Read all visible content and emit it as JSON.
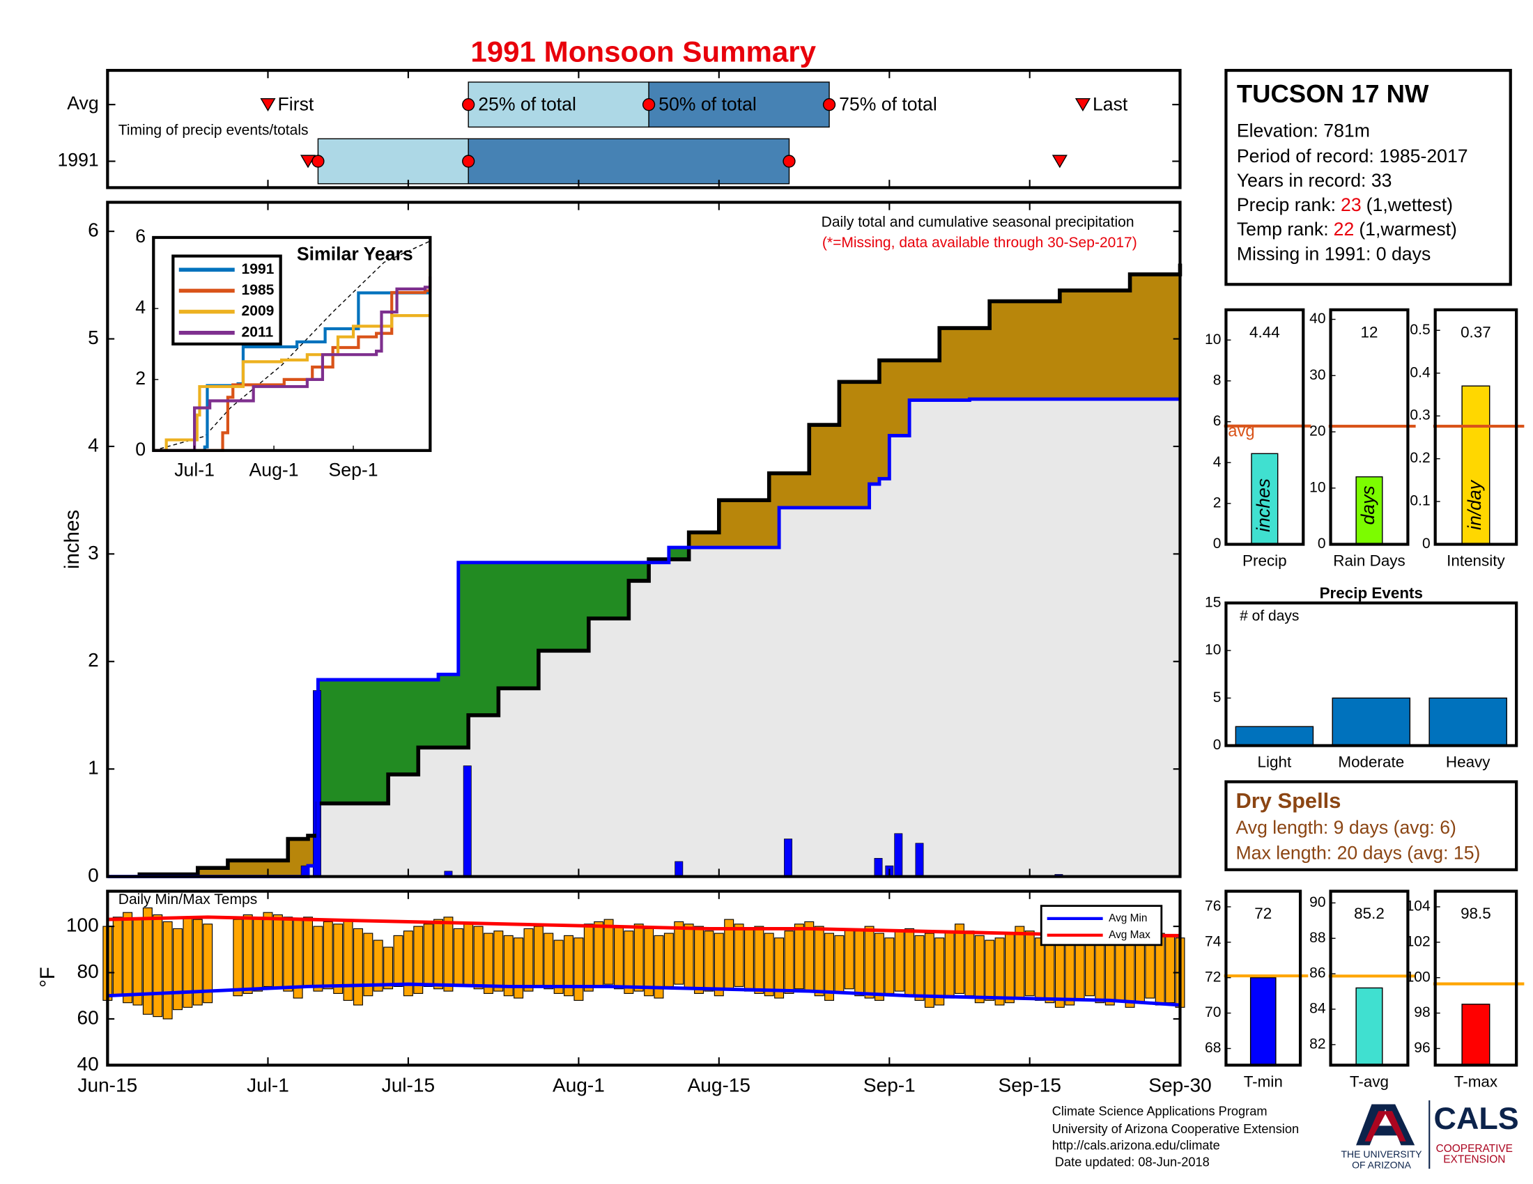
{
  "chart_data": [
    {
      "type": "area",
      "title": "1991 Monsoon Summary",
      "ylabel": "inches",
      "annotation": "Daily total and cumulative seasonal precipitation",
      "note": "(*=Missing, data available through 30-Sep-2017)",
      "xlim": [
        0,
        107
      ],
      "ylim": [
        0,
        6.27
      ],
      "yticks": [
        0,
        1,
        2,
        3,
        4,
        5,
        6
      ],
      "avg": {
        "color": "#000000",
        "x": [
          3,
          9,
          12,
          18,
          20,
          21,
          28,
          31,
          36,
          39,
          43,
          48,
          52,
          54,
          58,
          61,
          66,
          70,
          73,
          77,
          83,
          88,
          95,
          102,
          107
        ],
        "values": [
          0.02,
          0.08,
          0.15,
          0.35,
          0.38,
          0.68,
          0.95,
          1.2,
          1.5,
          1.75,
          2.1,
          2.4,
          2.75,
          2.95,
          3.2,
          3.5,
          3.75,
          4.2,
          4.6,
          4.8,
          5.1,
          5.35,
          5.45,
          5.6,
          5.7
        ]
      },
      "year": {
        "color": "#0000ff",
        "x": [
          0,
          20,
          21,
          33,
          35,
          56,
          67,
          76,
          77,
          78,
          80,
          86,
          107
        ],
        "values": [
          0,
          0.1,
          1.83,
          1.88,
          2.92,
          3.06,
          3.43,
          3.65,
          3.7,
          4.1,
          4.43,
          4.44,
          4.44
        ]
      },
      "daily": {
        "color": "#0000ff",
        "x": [
          19.7,
          20.9,
          34,
          35.9,
          57,
          67.9,
          76.9,
          78,
          78.9,
          81,
          94.9
        ],
        "values": [
          0.1,
          1.73,
          0.05,
          1.03,
          0.14,
          0.35,
          0.17,
          0.1,
          0.4,
          0.31,
          0.02
        ]
      },
      "dry_fill": "#b8860b",
      "wet_fill": "#228b22",
      "fill": "#e8e8e8"
    },
    {
      "type": "line",
      "title": "Similar Years",
      "xlim": [
        0,
        108
      ],
      "ylim": [
        0,
        6
      ],
      "yticks": [
        0,
        2,
        4,
        6
      ],
      "xticks": [
        {
          "value": 16,
          "label": "Jul-1"
        },
        {
          "value": 47,
          "label": "Aug-1"
        },
        {
          "value": 78,
          "label": "Sep-1"
        }
      ],
      "series": [
        {
          "name": "1991",
          "color": "#0072bd",
          "x": [
            0,
            20,
            21,
            33,
            35,
            56,
            67,
            80,
            108
          ],
          "values": [
            0,
            0.1,
            1.83,
            1.88,
            2.92,
            3.06,
            3.43,
            4.44,
            4.44
          ]
        },
        {
          "name": "1985",
          "color": "#d95319",
          "x": [
            0,
            27,
            29,
            31,
            51,
            62,
            70,
            80,
            87,
            93,
            106,
            108
          ],
          "values": [
            0,
            0.5,
            1.5,
            1.85,
            2.0,
            2.35,
            2.9,
            3.2,
            3.3,
            4.45,
            4.5,
            4.9
          ]
        },
        {
          "name": "2009",
          "color": "#edb120",
          "x": [
            0,
            5,
            17,
            18,
            35,
            50,
            60,
            72,
            78,
            93,
            108
          ],
          "values": [
            0,
            0.3,
            1.0,
            1.8,
            2.5,
            2.55,
            2.7,
            3.2,
            3.5,
            3.8,
            3.8
          ]
        },
        {
          "name": "2011",
          "color": "#7e2f8e",
          "x": [
            0,
            14.5,
            16,
            22,
            39,
            60,
            66,
            87,
            89,
            95,
            106,
            108
          ],
          "values": [
            0,
            0,
            1.2,
            1.4,
            1.8,
            2.0,
            2.7,
            2.8,
            3.9,
            4.55,
            4.6,
            4.9
          ]
        }
      ],
      "avg": {
        "color": "#000000",
        "x": [
          0,
          20,
          30,
          50,
          70,
          90,
          108
        ],
        "values": [
          0,
          0.4,
          1.2,
          2.4,
          3.9,
          5.3,
          5.9
        ]
      }
    },
    {
      "type": "timeline",
      "annotation": "Timing of precip events/totals",
      "xlim": [
        0,
        107
      ],
      "labels": {
        "first": "First",
        "q25": "25% of total",
        "q50": "50% of total",
        "q75": "75% of total",
        "last": "Last"
      },
      "colors": {
        "early": "#add8e6",
        "late": "#4682b4",
        "marker": "#ff0000"
      },
      "rows": [
        {
          "name": "Avg",
          "first": 16,
          "q25": 36,
          "q50": 54,
          "q75": 72,
          "last": 97.3
        },
        {
          "name": "1991",
          "first": 20,
          "q25": 21,
          "q50": 36,
          "q75": 68,
          "last": 95
        }
      ]
    },
    {
      "type": "bar",
      "categories": [
        "Precip"
      ],
      "values": [
        4.44
      ],
      "color": "#40e0d0",
      "data_labels": true,
      "unit_label": "inches",
      "avg": 5.79,
      "avg_label": "avg",
      "avg_color": "#d95319",
      "ylim": [
        0,
        11.48
      ],
      "yticks": [
        0,
        2,
        4,
        6,
        8,
        10
      ]
    },
    {
      "type": "bar",
      "categories": [
        "Rain Days"
      ],
      "values": [
        12
      ],
      "color": "#7cfc00",
      "data_labels": true,
      "unit_label": "days",
      "avg": 21,
      "avg_color": "#d95319",
      "ylim": [
        0,
        41.7
      ],
      "yticks": [
        0,
        10,
        20,
        30,
        40
      ]
    },
    {
      "type": "bar",
      "categories": [
        "Intensity"
      ],
      "values": [
        0.37
      ],
      "color": "#ffd700",
      "data_labels": true,
      "unit_label": "in/day",
      "avg": 0.276,
      "avg_color": "#d95319",
      "ylim": [
        0,
        0.548
      ],
      "yticks": [
        0,
        0.1,
        0.2,
        0.3,
        0.4,
        0.5
      ]
    },
    {
      "type": "bar",
      "title": "Precip Events",
      "note": "# of days",
      "categories": [
        "Light",
        "Moderate",
        "Heavy"
      ],
      "values": [
        2,
        5,
        5
      ],
      "color": "#0072bd",
      "ylim": [
        0,
        15
      ],
      "yticks": [
        0,
        5,
        10,
        15
      ]
    },
    {
      "type": "range",
      "title": "Daily Min/Max Temps",
      "ylabel": "°F",
      "xlim": [
        0,
        107
      ],
      "ylim": [
        40,
        115.2
      ],
      "yticks": [
        40,
        60,
        80,
        100
      ],
      "xticks": [
        {
          "value": 0,
          "label": "Jun-15"
        },
        {
          "value": 16,
          "label": "Jul-1"
        },
        {
          "value": 30,
          "label": "Jul-15"
        },
        {
          "value": 47,
          "label": "Aug-1"
        },
        {
          "value": 61,
          "label": "Aug-15"
        },
        {
          "value": 78,
          "label": "Sep-1"
        },
        {
          "value": 92,
          "label": "Sep-15"
        },
        {
          "value": 107,
          "label": "Sep-30"
        }
      ],
      "color": "#ffa500",
      "x": [
        0,
        1,
        2,
        3,
        4,
        5,
        6,
        7,
        8,
        9,
        10,
        11,
        12,
        13,
        14,
        15,
        16,
        17,
        18,
        19,
        20,
        21,
        22,
        23,
        24,
        25,
        26,
        27,
        28,
        29,
        30,
        31,
        32,
        33,
        34,
        35,
        36,
        37,
        38,
        39,
        40,
        41,
        42,
        43,
        44,
        45,
        46,
        47,
        48,
        49,
        50,
        51,
        52,
        53,
        54,
        55,
        56,
        57,
        58,
        59,
        60,
        61,
        62,
        63,
        64,
        65,
        66,
        67,
        68,
        69,
        70,
        71,
        72,
        73,
        74,
        75,
        76,
        77,
        78,
        79,
        80,
        81,
        82,
        83,
        84,
        85,
        86,
        87,
        88,
        89,
        90,
        91,
        92,
        93,
        94,
        95,
        96,
        97,
        98,
        99,
        100,
        101,
        102,
        103,
        104,
        105,
        106,
        107
      ],
      "high": [
        100,
        104,
        106,
        103,
        108,
        105,
        102,
        99,
        104,
        103,
        101,
        null,
        null,
        103,
        105,
        104,
        106,
        105,
        104,
        103,
        104,
        100,
        102,
        101,
        103,
        99,
        97,
        94,
        91,
        96,
        98,
        100,
        101,
        103,
        104,
        99,
        101,
        100,
        97,
        98,
        96,
        95,
        99,
        100,
        97,
        94,
        96,
        95,
        101,
        102,
        103,
        100,
        98,
        101,
        99,
        96,
        97,
        102,
        101,
        100,
        98,
        97,
        103,
        101,
        99,
        100,
        97,
        95,
        98,
        101,
        102,
        100,
        97,
        96,
        99,
        98,
        100,
        97,
        95,
        98,
        99,
        96,
        97,
        95,
        98,
        101,
        98,
        96,
        94,
        95,
        97,
        100,
        98,
        95,
        96,
        93,
        97,
        99,
        96,
        98,
        100,
        97,
        95,
        96,
        99,
        97,
        96,
        95
      ],
      "low": [
        68,
        70,
        67,
        66,
        62,
        61,
        60,
        64,
        65,
        66,
        67,
        null,
        null,
        70,
        71,
        72,
        74,
        73,
        72,
        69,
        74,
        72,
        73,
        71,
        68,
        66,
        70,
        72,
        73,
        74,
        70,
        71,
        74,
        73,
        72,
        75,
        74,
        73,
        71,
        72,
        70,
        69,
        72,
        74,
        73,
        71,
        70,
        68,
        72,
        74,
        75,
        73,
        71,
        72,
        70,
        69,
        74,
        75,
        73,
        71,
        72,
        70,
        73,
        74,
        72,
        71,
        70,
        69,
        71,
        73,
        72,
        70,
        68,
        71,
        73,
        70,
        69,
        68,
        71,
        72,
        70,
        68,
        65,
        66,
        69,
        71,
        70,
        67,
        68,
        66,
        67,
        69,
        70,
        68,
        67,
        65,
        66,
        68,
        70,
        67,
        66,
        68,
        65,
        67,
        69,
        66,
        67,
        65
      ],
      "series": [
        {
          "name": "Avg Min",
          "color": "#0000ff",
          "x": [
            0,
            10,
            20,
            30,
            40,
            50,
            60,
            70,
            80,
            90,
            100,
            107
          ],
          "values": [
            70,
            72,
            74,
            75,
            74,
            74,
            73,
            72,
            70,
            69,
            68,
            66
          ]
        },
        {
          "name": "Avg Max",
          "color": "#ff0000",
          "x": [
            0,
            10,
            20,
            30,
            40,
            50,
            60,
            70,
            80,
            90,
            100,
            107
          ],
          "values": [
            103,
            104,
            103,
            102,
            101,
            100,
            99,
            99,
            98,
            97,
            96,
            96
          ]
        }
      ]
    },
    {
      "type": "bar",
      "categories": [
        "T-min"
      ],
      "values": [
        72
      ],
      "color": "#0000ff",
      "data_labels": true,
      "avg": 72.1,
      "avg_color": "#ffa500",
      "ylim": [
        67.06,
        76.88
      ],
      "yticks": [
        68,
        70,
        72,
        74,
        76
      ]
    },
    {
      "type": "bar",
      "categories": [
        "T-avg"
      ],
      "values": [
        85.2
      ],
      "color": "#40e0d0",
      "data_labels": true,
      "avg": 85.87,
      "avg_color": "#ffa500",
      "ylim": [
        80.84,
        90.66
      ],
      "yticks": [
        82,
        84,
        86,
        88,
        90
      ]
    },
    {
      "type": "bar",
      "categories": [
        "T-max"
      ],
      "values": [
        98.5
      ],
      "color": "#ff0000",
      "data_labels": true,
      "avg": 99.65,
      "avg_color": "#ffa500",
      "ylim": [
        95.06,
        104.88
      ],
      "yticks": [
        96,
        98,
        100,
        102,
        104
      ]
    }
  ],
  "info": {
    "title": "TUCSON 17 NW",
    "lines": [
      "Elevation: 781m",
      "Period of record: 1985-2017",
      "Years in record: 33"
    ],
    "precip_rank": {
      "label": "Precip rank:",
      "value": 23,
      "note": "(1,wettest)"
    },
    "temp_rank": {
      "label": "Temp rank:",
      "value": 22,
      "note": "(1,warmest)"
    },
    "missing": "Missing in 1991: 0 days"
  },
  "dry_spells": {
    "title": "Dry Spells",
    "lines": [
      "Avg length: 9 days (avg: 6)",
      "Max length: 20 days (avg: 15)"
    ]
  },
  "footer": {
    "lines": [
      "Climate Science Applications Program",
      "University of Arizona Cooperative Extension",
      "http://cals.arizona.edu/climate",
      "Date updated: 08-Jun-2018"
    ],
    "university": [
      "THE UNIVERSITY",
      "OF ARIZONA"
    ],
    "cals": "CALS",
    "extension": [
      "COOPERATIVE",
      "EXTENSION"
    ]
  }
}
